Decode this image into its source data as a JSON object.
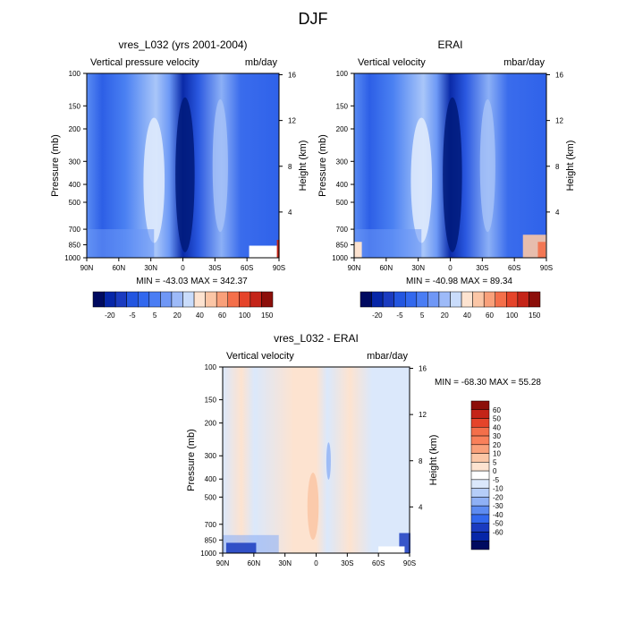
{
  "figure_title": "DJF",
  "colors": {
    "blues": [
      "#1a3bc0",
      "#2356e0",
      "#3268ee",
      "#4a7df4",
      "#6f97f6",
      "#9dbaf8",
      "#c9dcfb",
      "#e7f0fd"
    ],
    "deep": [
      "#000a60",
      "#001a8a",
      "#0626a8",
      "#0a32c0"
    ],
    "warm": [
      "#fde3d0",
      "#fbc6a6",
      "#f9a07a",
      "#f46f4a",
      "#e5442a",
      "#c42418",
      "#8c0f0a"
    ]
  },
  "chart_data": [
    {
      "type": "heatmap",
      "title": "vres_L032 (yrs 2001-2004)",
      "left_string": "Vertical pressure velocity",
      "right_string": "mb/day",
      "ylabel": "Pressure (mb)",
      "y2label": "Height (km)",
      "x_ticks": [
        "90N",
        "60N",
        "30N",
        "0",
        "30S",
        "60S",
        "90S"
      ],
      "x_tick_values": [
        90,
        60,
        30,
        0,
        -30,
        -60,
        -90
      ],
      "y_ticks": [
        "100",
        "150",
        "200",
        "300",
        "400",
        "500",
        "700",
        "850",
        "1000"
      ],
      "y_tick_values": [
        100,
        150,
        200,
        300,
        400,
        500,
        700,
        850,
        1000
      ],
      "y2_ticks": [
        "16",
        "12",
        "8",
        "4"
      ],
      "y2_tick_values": [
        16,
        12,
        8,
        4
      ],
      "ylim": [
        100,
        1000
      ],
      "xlim": [
        90,
        -90
      ],
      "min": "-43.03",
      "max": "342.37",
      "stats_text": "MIN = -43.03  MAX = 342.37",
      "colorbar": {
        "orientation": "horizontal",
        "labels": [
          "-20",
          "-5",
          "5",
          "20",
          "40",
          "60",
          "100",
          "150"
        ],
        "colors": [
          "#000a60",
          "#0626a8",
          "#1a3bc0",
          "#2356e0",
          "#3268ee",
          "#4a7df4",
          "#6f97f6",
          "#9dbaf8",
          "#c9dcfb",
          "#fde3d0",
          "#fbc6a6",
          "#f9a07a",
          "#f46f4a",
          "#e5442a",
          "#c42418",
          "#8c0f0a"
        ]
      }
    },
    {
      "type": "heatmap",
      "title": "ERAI",
      "left_string": "Vertical velocity",
      "right_string": "mbar/day",
      "ylabel": "Pressure (mb)",
      "y2label": "Height (km)",
      "x_ticks": [
        "90N",
        "60N",
        "30N",
        "0",
        "30S",
        "60S",
        "90S"
      ],
      "x_tick_values": [
        90,
        60,
        30,
        0,
        -30,
        -60,
        -90
      ],
      "y_ticks": [
        "100",
        "150",
        "200",
        "300",
        "400",
        "500",
        "700",
        "850",
        "1000"
      ],
      "y_tick_values": [
        100,
        150,
        200,
        300,
        400,
        500,
        700,
        850,
        1000
      ],
      "y2_ticks": [
        "16",
        "12",
        "8",
        "4"
      ],
      "y2_tick_values": [
        16,
        12,
        8,
        4
      ],
      "ylim": [
        100,
        1000
      ],
      "xlim": [
        90,
        -90
      ],
      "min": "-40.98",
      "max": "89.34",
      "stats_text": "MIN = -40.98  MAX =  89.34",
      "colorbar": {
        "orientation": "horizontal",
        "labels": [
          "-20",
          "-5",
          "5",
          "20",
          "40",
          "60",
          "100",
          "150"
        ],
        "colors": [
          "#000a60",
          "#0626a8",
          "#1a3bc0",
          "#2356e0",
          "#3268ee",
          "#4a7df4",
          "#6f97f6",
          "#9dbaf8",
          "#c9dcfb",
          "#fde3d0",
          "#fbc6a6",
          "#f9a07a",
          "#f46f4a",
          "#e5442a",
          "#c42418",
          "#8c0f0a"
        ]
      }
    },
    {
      "type": "heatmap",
      "title": "vres_L032 - ERAI",
      "left_string": "Vertical velocity",
      "right_string": "mbar/day",
      "ylabel": "Pressure (mb)",
      "y2label": "Height (km)",
      "x_ticks": [
        "90N",
        "60N",
        "30N",
        "0",
        "30S",
        "60S",
        "90S"
      ],
      "x_tick_values": [
        90,
        60,
        30,
        0,
        -30,
        -60,
        -90
      ],
      "y_ticks": [
        "100",
        "150",
        "200",
        "300",
        "400",
        "500",
        "700",
        "850",
        "1000"
      ],
      "y_tick_values": [
        100,
        150,
        200,
        300,
        400,
        500,
        700,
        850,
        1000
      ],
      "y2_ticks": [
        "16",
        "12",
        "8",
        "4"
      ],
      "y2_tick_values": [
        16,
        12,
        8,
        4
      ],
      "ylim": [
        100,
        1000
      ],
      "xlim": [
        90,
        -90
      ],
      "min": "-68.30",
      "max": "55.28",
      "stats_text": "MIN = -68.30  MAX =  55.28",
      "colorbar": {
        "orientation": "vertical",
        "labels": [
          "60",
          "50",
          "40",
          "30",
          "20",
          "10",
          "5",
          "0",
          "-5",
          "-10",
          "-20",
          "-30",
          "-40",
          "-50",
          "-60"
        ],
        "colors": [
          "#8c0f0a",
          "#c42418",
          "#e5442a",
          "#f46f4a",
          "#f9805a",
          "#f9a07a",
          "#fbc6a6",
          "#fde3d0",
          "#ffffff",
          "#dbe8fb",
          "#b5cdf8",
          "#8fb0f5",
          "#5d8bf1",
          "#3268ee",
          "#1a3bc0",
          "#0626a8",
          "#000a60"
        ]
      }
    }
  ]
}
